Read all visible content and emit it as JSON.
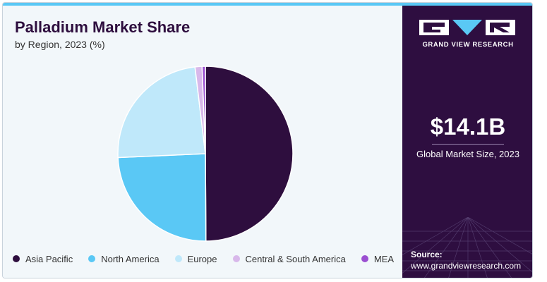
{
  "header": {
    "title": "Palladium Market Share",
    "subtitle": "by Region, 2023 (%)"
  },
  "chart_data": {
    "type": "pie",
    "title": "Palladium Market Share",
    "subtitle": "by Region, 2023 (%)",
    "categories": [
      "Asia Pacific",
      "North America",
      "Europe",
      "Central & South America",
      "MEA"
    ],
    "values": [
      49.9,
      24.4,
      23.8,
      1.3,
      0.6
    ],
    "colors": [
      "#2e0e3e",
      "#5ac8f5",
      "#bfe8fa",
      "#d8b8ea",
      "#9b4fd1"
    ],
    "legend_position": "bottom",
    "start_angle": "12 o'clock, clockwise"
  },
  "sidebar": {
    "brand": "GRAND VIEW RESEARCH",
    "market_size_value": "$14.1B",
    "market_size_caption": "Global Market Size, 2023",
    "source_label": "Source:",
    "source_url": "www.grandviewresearch.com"
  },
  "colors": {
    "panel_bg": "#f2f7fa",
    "sidebar_bg": "#2e0e40",
    "accent": "#5ac8f5"
  }
}
